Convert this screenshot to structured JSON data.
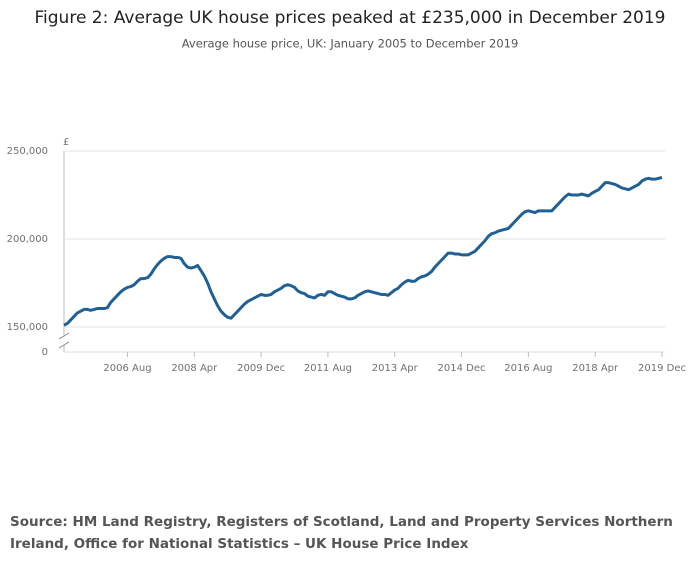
{
  "chart_data": {
    "type": "line",
    "title": "Figure 2: Average UK house prices peaked at £235,000 in December 2019",
    "subtitle": "Average house price, UK: January 2005 to December 2019",
    "y_label": "£",
    "source": "Source: HM Land Registry, Registers of Scotland, Land and Property Services Northern Ireland, Office for National Statistics – UK House Price Index",
    "categories": [
      null,
      null,
      null,
      null,
      null,
      null,
      null,
      null,
      null,
      null,
      null,
      null,
      null,
      null,
      null,
      null,
      null,
      null,
      null,
      "2006 Aug",
      null,
      null,
      null,
      null,
      null,
      null,
      null,
      null,
      null,
      null,
      null,
      null,
      null,
      null,
      null,
      null,
      null,
      null,
      null,
      "2008 Apr",
      null,
      null,
      null,
      null,
      null,
      null,
      null,
      null,
      null,
      null,
      null,
      null,
      null,
      null,
      null,
      null,
      null,
      null,
      null,
      "2009 Dec",
      null,
      null,
      null,
      null,
      null,
      null,
      null,
      null,
      null,
      null,
      null,
      null,
      null,
      null,
      null,
      null,
      null,
      null,
      null,
      "2011 Aug",
      null,
      null,
      null,
      null,
      null,
      null,
      null,
      null,
      null,
      null,
      null,
      null,
      null,
      null,
      null,
      null,
      null,
      null,
      null,
      "2013 Apr",
      null,
      null,
      null,
      null,
      null,
      null,
      null,
      null,
      null,
      null,
      null,
      null,
      null,
      null,
      null,
      null,
      null,
      null,
      null,
      "2014 Dec",
      null,
      null,
      null,
      null,
      null,
      null,
      null,
      null,
      null,
      null,
      null,
      null,
      null,
      null,
      null,
      null,
      null,
      null,
      null,
      "2016 Aug",
      null,
      null,
      null,
      null,
      null,
      null,
      null,
      null,
      null,
      null,
      null,
      null,
      null,
      null,
      null,
      null,
      null,
      null,
      null,
      "2018 Apr",
      null,
      null,
      null,
      null,
      null,
      null,
      null,
      null,
      null,
      null,
      null,
      null,
      null,
      null,
      null,
      null,
      null,
      null,
      null,
      "2019 Dec"
    ],
    "series": [
      {
        "color": "#206095",
        "values": [
          151000,
          152000,
          154000,
          156000,
          158000,
          159000,
          160000,
          160000,
          159500,
          160000,
          160500,
          160500,
          160500,
          161000,
          164000,
          166000,
          168000,
          170000,
          171500,
          172500,
          173000,
          174000,
          176000,
          177500,
          177500,
          178000,
          180000,
          183000,
          185500,
          187500,
          189000,
          190000,
          190000,
          189500,
          189500,
          189000,
          186000,
          184000,
          183500,
          184000,
          185000,
          182000,
          179000,
          175000,
          170000,
          166000,
          162000,
          159000,
          157000,
          155500,
          155000,
          157000,
          159000,
          161000,
          163000,
          164500,
          165500,
          166500,
          167500,
          168500,
          168000,
          168000,
          168500,
          170000,
          171000,
          172000,
          173500,
          174000,
          173500,
          172500,
          170500,
          169500,
          169000,
          167500,
          167000,
          166500,
          168000,
          168500,
          168000,
          170000,
          170000,
          169000,
          168000,
          167500,
          167000,
          166000,
          166000,
          166500,
          168000,
          169000,
          170000,
          170500,
          170000,
          169500,
          169000,
          168500,
          168500,
          168000,
          169500,
          171000,
          172000,
          174000,
          175500,
          176500,
          176000,
          176000,
          177500,
          178500,
          179000,
          180000,
          181500,
          184000,
          186000,
          188000,
          190000,
          192000,
          192000,
          191500,
          191500,
          191000,
          191000,
          191000,
          192000,
          193000,
          195000,
          197000,
          199000,
          201500,
          203000,
          203500,
          204500,
          205000,
          205500,
          206000,
          208000,
          210000,
          212000,
          214000,
          215500,
          216000,
          215500,
          215000,
          216000,
          216000,
          216000,
          216000,
          216000,
          218000,
          220000,
          222000,
          224000,
          225500,
          225000,
          225000,
          225000,
          225500,
          225000,
          224500,
          226000,
          227000,
          228000,
          230000,
          232000,
          232000,
          231500,
          231000,
          230000,
          229000,
          228500,
          228000,
          229000,
          230000,
          231000,
          233000,
          234000,
          234500,
          234000,
          234000,
          234500,
          235000
        ]
      }
    ],
    "ylim": [
      150000,
      250000
    ],
    "yticks": [
      0,
      {
        "value": 150000,
        "label": "150,000"
      },
      {
        "value": 200000,
        "label": "200,000"
      },
      {
        "value": 250000,
        "label": "250,000"
      }
    ],
    "grid": true
  }
}
